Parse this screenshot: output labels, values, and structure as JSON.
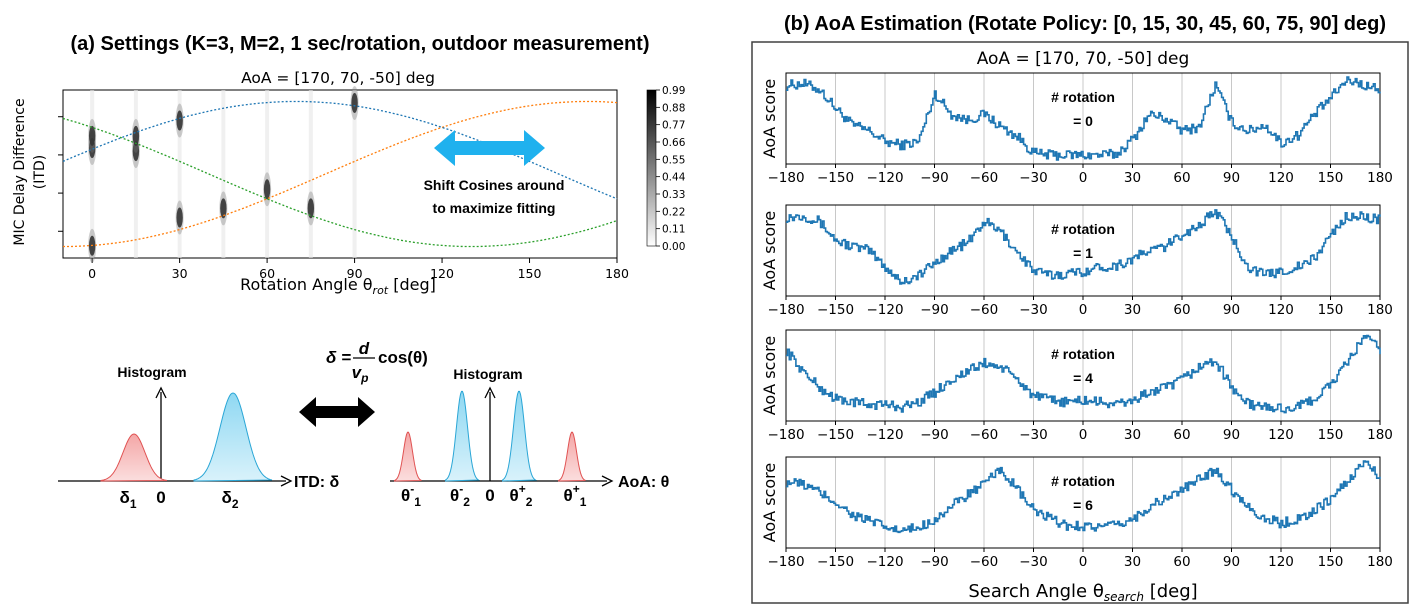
{
  "panel_a": {
    "heading": "(a) Settings (K=3, M=2, 1 sec/rotation,  outdoor measurement)",
    "chart_title": "AoA = [170, 70, -50] deg",
    "ylabel_line1": "MIC Delay Difference",
    "ylabel_line2": "(ITD)",
    "xlabel_main": "Rotation Angle θ",
    "xlabel_sub": "rot",
    "xlabel_unit": " [deg]",
    "shift_note_line1": "Shift Cosines around",
    "shift_note_line2": "to maximize fitting",
    "colorbar_ticks": [
      "0.99",
      "0.88",
      "0.77",
      "0.66",
      "0.55",
      "0.44",
      "0.33",
      "0.22",
      "0.11",
      "0.00"
    ]
  },
  "panel_a_diagram": {
    "formula_lhs": "δ = ",
    "formula_num": "d",
    "formula_den_v": "v",
    "formula_den_p": "p",
    "formula_rhs": "cos(θ)",
    "hist_label": "Histogram",
    "left_axis_label": "ITD: δ",
    "right_axis_label": "AoA: θ",
    "left_ticks": [
      {
        "base": "δ",
        "sub": "1"
      },
      {
        "base": "0",
        "sub": ""
      },
      {
        "base": "δ",
        "sub": "2"
      }
    ],
    "right_ticks": [
      {
        "base": "θ",
        "sup": "-",
        "sub": "1"
      },
      {
        "base": "θ",
        "sup": "-",
        "sub": "2"
      },
      {
        "base": "0",
        "sup": "",
        "sub": ""
      },
      {
        "base": "θ",
        "sup": "+",
        "sub": "2"
      },
      {
        "base": "θ",
        "sup": "+",
        "sub": "1"
      }
    ]
  },
  "panel_b": {
    "heading": "(b) AoA Estimation (Rotate Policy: [0, 15, 30, 45, 60, 75, 90] deg)",
    "chart_title": "AoA = [170, 70, -50] deg",
    "ylabel": "AoA score",
    "xlabel_main": "Search Angle θ",
    "xlabel_sub": "search",
    "xlabel_unit": " [deg]"
  },
  "chart_data": [
    {
      "type": "scatter",
      "title": "AoA = [170, 70, -50] deg",
      "xlabel": "Rotation Angle θrot [deg]",
      "ylabel": "MIC Delay Difference (ITD)",
      "xlim": [
        -10,
        180
      ],
      "ylim": [
        -1.1,
        1.1
      ],
      "xticks": [
        0,
        30,
        60,
        90,
        120,
        150,
        180
      ],
      "rotation_angles": [
        0,
        15,
        30,
        45,
        60,
        75,
        90
      ],
      "peaks": [
        {
          "x": 0,
          "y": [
            -0.94,
            0.34,
            0.5
          ]
        },
        {
          "x": 15,
          "y": [
            0.3,
            0.5
          ]
        },
        {
          "x": 30,
          "y": [
            -0.57,
            0.7
          ]
        },
        {
          "x": 45,
          "y": [
            -0.45
          ]
        },
        {
          "x": 60,
          "y": [
            -0.2
          ]
        },
        {
          "x": 75,
          "y": [
            -0.45
          ]
        },
        {
          "x": 90,
          "y": [
            0.93
          ]
        }
      ],
      "fitted_cosines": [
        {
          "color": "#ff7f0e",
          "aoa": 170
        },
        {
          "color": "#1f77b4",
          "aoa": 70
        },
        {
          "color": "#2ca02c",
          "aoa": -50
        }
      ],
      "colorbar_range": [
        0,
        0.99
      ],
      "grid": false
    },
    {
      "type": "line",
      "title": "AoA = [170, 70, -50] deg",
      "xlabel": "Search Angle θsearch [deg]",
      "ylabel": "AoA score",
      "xlim": [
        -180,
        180
      ],
      "xticks": [
        -180,
        -150,
        -120,
        -90,
        -60,
        -30,
        0,
        30,
        60,
        90,
        120,
        150,
        180
      ],
      "grid": "vertical",
      "series": [
        {
          "annotation": [
            "# rotation",
            "= 0"
          ],
          "x": [
            -180,
            -170,
            -160,
            -150,
            -140,
            -130,
            -120,
            -110,
            -100,
            -90,
            -80,
            -70,
            -60,
            -50,
            -40,
            -30,
            -20,
            -10,
            0,
            10,
            20,
            30,
            40,
            50,
            60,
            70,
            80,
            90,
            100,
            110,
            120,
            130,
            140,
            150,
            160,
            170,
            180
          ],
          "y": [
            0.9,
            0.92,
            0.85,
            0.62,
            0.42,
            0.35,
            0.22,
            0.18,
            0.22,
            0.8,
            0.55,
            0.48,
            0.55,
            0.4,
            0.28,
            0.08,
            0.06,
            0.06,
            0.06,
            0.06,
            0.07,
            0.25,
            0.55,
            0.5,
            0.35,
            0.4,
            0.9,
            0.45,
            0.35,
            0.42,
            0.2,
            0.3,
            0.55,
            0.75,
            0.98,
            0.9,
            0.85
          ]
        },
        {
          "annotation": [
            "# rotation",
            "= 1"
          ],
          "x": [
            -180,
            -170,
            -160,
            -150,
            -140,
            -130,
            -120,
            -110,
            -100,
            -90,
            -80,
            -70,
            -60,
            -50,
            -40,
            -30,
            -20,
            -10,
            0,
            10,
            20,
            30,
            40,
            50,
            60,
            70,
            80,
            90,
            100,
            110,
            120,
            130,
            140,
            150,
            160,
            170,
            180
          ],
          "y": [
            0.9,
            0.92,
            0.85,
            0.62,
            0.55,
            0.5,
            0.3,
            0.12,
            0.2,
            0.35,
            0.5,
            0.6,
            0.85,
            0.72,
            0.48,
            0.25,
            0.2,
            0.22,
            0.25,
            0.3,
            0.32,
            0.4,
            0.5,
            0.55,
            0.7,
            0.8,
            0.98,
            0.65,
            0.3,
            0.2,
            0.25,
            0.3,
            0.4,
            0.7,
            0.92,
            0.9,
            0.88
          ]
        },
        {
          "annotation": [
            "# rotation",
            "= 4"
          ],
          "x": [
            -180,
            -170,
            -160,
            -150,
            -140,
            -130,
            -120,
            -110,
            -100,
            -90,
            -80,
            -70,
            -60,
            -50,
            -40,
            -30,
            -20,
            -10,
            0,
            10,
            20,
            30,
            40,
            50,
            60,
            70,
            80,
            90,
            100,
            110,
            120,
            130,
            140,
            150,
            160,
            170,
            180
          ],
          "y": [
            0.8,
            0.55,
            0.35,
            0.22,
            0.18,
            0.15,
            0.15,
            0.12,
            0.18,
            0.3,
            0.45,
            0.55,
            0.65,
            0.6,
            0.45,
            0.25,
            0.2,
            0.18,
            0.2,
            0.18,
            0.15,
            0.2,
            0.3,
            0.35,
            0.45,
            0.6,
            0.68,
            0.35,
            0.15,
            0.12,
            0.1,
            0.12,
            0.22,
            0.4,
            0.65,
            0.98,
            0.8
          ]
        },
        {
          "annotation": [
            "# rotation",
            "= 6"
          ],
          "x": [
            -180,
            -170,
            -160,
            -150,
            -140,
            -130,
            -120,
            -110,
            -100,
            -90,
            -80,
            -70,
            -60,
            -50,
            -40,
            -30,
            -20,
            -10,
            0,
            10,
            20,
            30,
            40,
            50,
            60,
            70,
            80,
            90,
            100,
            110,
            120,
            130,
            140,
            150,
            160,
            170,
            180
          ],
          "y": [
            0.75,
            0.72,
            0.62,
            0.5,
            0.35,
            0.28,
            0.2,
            0.15,
            0.2,
            0.3,
            0.45,
            0.6,
            0.72,
            0.9,
            0.65,
            0.4,
            0.3,
            0.22,
            0.22,
            0.2,
            0.22,
            0.3,
            0.45,
            0.55,
            0.65,
            0.78,
            0.9,
            0.65,
            0.45,
            0.3,
            0.25,
            0.3,
            0.4,
            0.55,
            0.75,
            1.0,
            0.8
          ]
        }
      ]
    }
  ]
}
